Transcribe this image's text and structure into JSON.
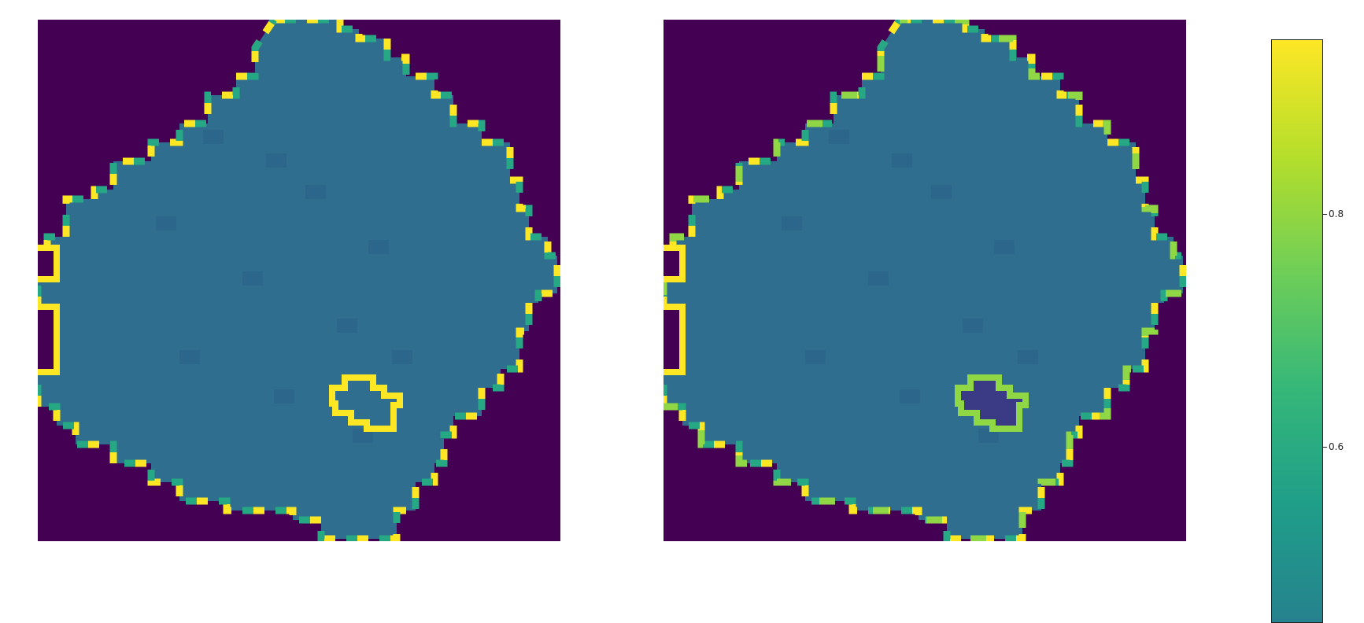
{
  "chart_data": {
    "type": "heatmap",
    "colormap": "viridis",
    "panels": [
      {
        "id": "left",
        "background_value": 0.0,
        "interior_value": 0.45,
        "boundary_values": [
          0.9,
          0.55
        ],
        "lesion_boundary_value": 0.95
      },
      {
        "id": "right",
        "background_value": 0.0,
        "interior_value": 0.43,
        "boundary_values": [
          0.9,
          0.55,
          0.8
        ],
        "lesion_boundary_value": 0.78,
        "lesion_interior_value": 0.1
      }
    ],
    "colorbar": {
      "range": [
        0.45,
        0.95
      ],
      "ticks": [
        0.8,
        0.6
      ],
      "tick_labels": [
        "0.8",
        "0.6"
      ]
    }
  },
  "colors": {
    "background": "#440154",
    "interior": "#2f6e8e",
    "boundary_yellow": "#fde725",
    "boundary_green": "#26a884",
    "boundary_lime": "#8fd744"
  }
}
